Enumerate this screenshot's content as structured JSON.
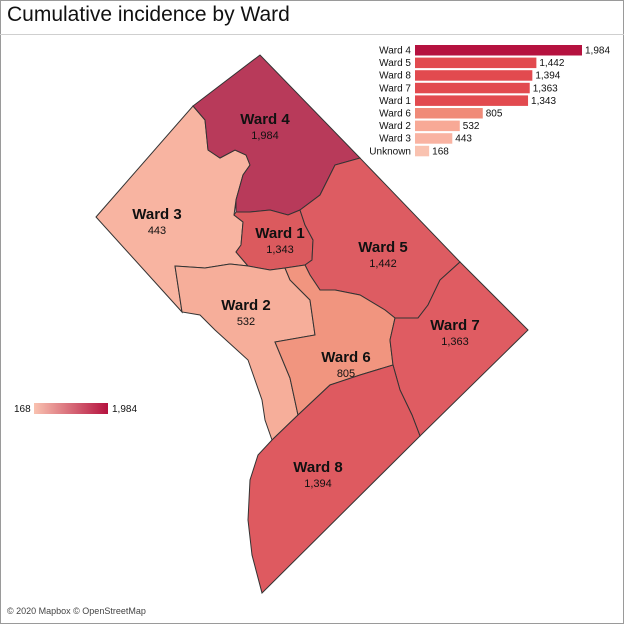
{
  "title": "Cumulative incidence by Ward",
  "attribution": "© 2020 Mapbox © OpenStreetMap",
  "legend": {
    "min_label": "168",
    "max_label": "1,984",
    "min_color": "#f9c2b0",
    "max_color": "#b5123f"
  },
  "chart_data": {
    "type": "bar",
    "orientation": "horizontal",
    "categories": [
      "Ward 4",
      "Ward 5",
      "Ward 8",
      "Ward 7",
      "Ward 1",
      "Ward 6",
      "Ward 2",
      "Ward 3",
      "Unknown"
    ],
    "values": [
      1984,
      1442,
      1394,
      1363,
      1343,
      805,
      532,
      443,
      168
    ],
    "labels": [
      "1,984",
      "1,442",
      "1,394",
      "1,363",
      "1,343",
      "805",
      "532",
      "443",
      "168"
    ],
    "colors": [
      "#b5123f",
      "#e24a4f",
      "#e24a4f",
      "#e24a4f",
      "#e24a4f",
      "#f08a78",
      "#f8a996",
      "#f9b3a2",
      "#f9c2b0"
    ]
  },
  "map": {
    "wards": [
      {
        "name": "Ward 4",
        "value": "1,984",
        "fill": "#b83a5a"
      },
      {
        "name": "Ward 3",
        "value": "443",
        "fill": "#f8b4a1"
      },
      {
        "name": "Ward 1",
        "value": "1,343",
        "fill": "#db5a5e"
      },
      {
        "name": "Ward 5",
        "value": "1,442",
        "fill": "#dd5c62"
      },
      {
        "name": "Ward 2",
        "value": "532",
        "fill": "#f6ae9a"
      },
      {
        "name": "Ward 6",
        "value": "805",
        "fill": "#f1957f"
      },
      {
        "name": "Ward 7",
        "value": "1,363",
        "fill": "#df5c62"
      },
      {
        "name": "Ward 8",
        "value": "1,394",
        "fill": "#de5a60"
      }
    ]
  }
}
